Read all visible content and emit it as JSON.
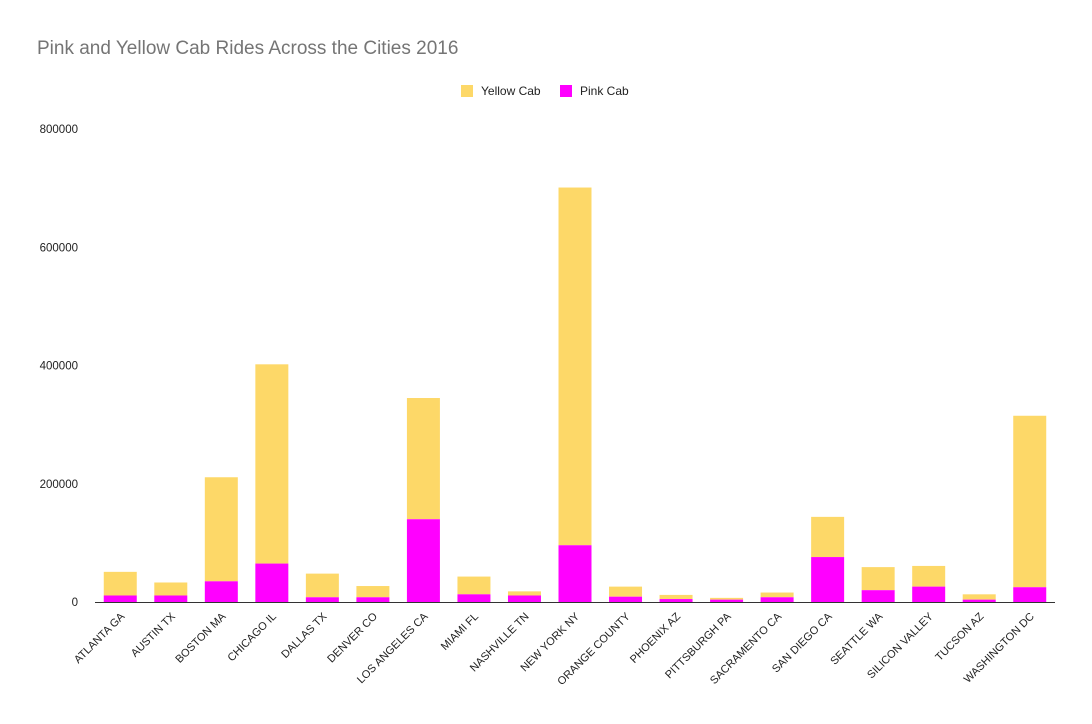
{
  "chart_data": {
    "type": "bar",
    "stacked": true,
    "title": "Pink and Yellow Cab Rides Across the Cities 2016",
    "xlabel": "",
    "ylabel": "",
    "ylim": [
      0,
      800000
    ],
    "yticks": [
      "0",
      "200000",
      "400000",
      "600000",
      "800000"
    ],
    "grid": false,
    "legend_position": "top",
    "categories": [
      "ATLANTA GA",
      "AUSTIN TX",
      "BOSTON MA",
      "CHICAGO IL",
      "DALLAS TX",
      "DENVER CO",
      "LOS ANGELES CA",
      "MIAMI FL",
      "NASHVILLE TN",
      "NEW YORK NY",
      "ORANGE COUNTY",
      "PHOENIX AZ",
      "PITTSBURGH PA",
      "SACRAMENTO CA",
      "SAN DIEGO CA",
      "SEATTLE WA",
      "SILICON VALLEY",
      "TUCSON AZ",
      "WASHINGTON DC"
    ],
    "series": [
      {
        "name": "Pink Cab",
        "color": "#ff00ff",
        "values": [
          11000,
          11000,
          35000,
          65000,
          8000,
          8000,
          140000,
          13000,
          11000,
          96000,
          9000,
          5000,
          4000,
          8000,
          76000,
          20000,
          26000,
          4000,
          25000
        ]
      },
      {
        "name": "Yellow Cab",
        "color": "#fdd868",
        "values": [
          40000,
          22000,
          176000,
          337000,
          40000,
          19000,
          205000,
          30000,
          7000,
          605000,
          17000,
          7000,
          3000,
          8000,
          68000,
          39000,
          35000,
          9000,
          290000
        ]
      }
    ],
    "legend": [
      {
        "name": "Yellow Cab",
        "color": "#fdd868"
      },
      {
        "name": "Pink Cab",
        "color": "#ff00ff"
      }
    ]
  }
}
